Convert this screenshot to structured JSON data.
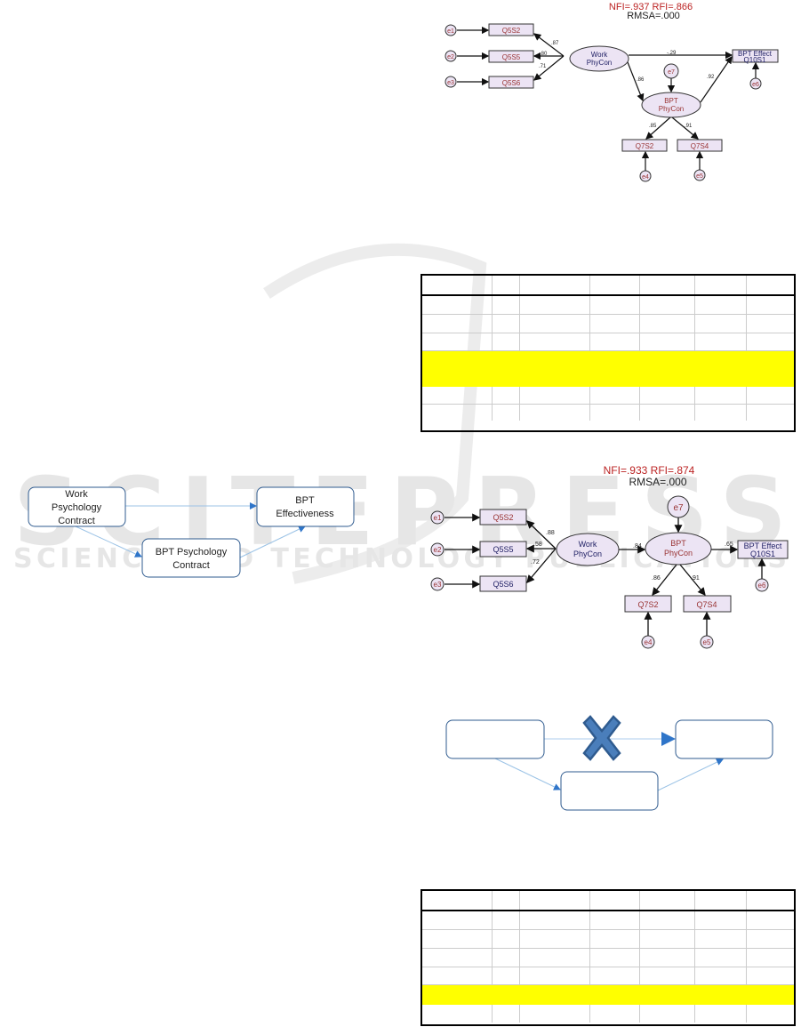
{
  "watermark": {
    "main": "SCITEPRESS",
    "sub": "SCIENCE AND TECHNOLOGY PUBLICATIONS"
  },
  "left_diagram": {
    "work": [
      "Work",
      "Psychology",
      "Contract"
    ],
    "effect": [
      "BPT",
      "Effectiveness"
    ],
    "mediator": [
      "BPT Psychology",
      "Contract"
    ]
  },
  "sem1": {
    "fit": "NFI=.937   RFI=.866",
    "rmsa": "RMSA=.000",
    "work": [
      "Work",
      "PhyCon"
    ],
    "bpt": [
      "BPT",
      "PhyCon"
    ],
    "effect": [
      "BPT Effect",
      "Q10S1"
    ],
    "items": [
      "Q5S2",
      "Q5S5",
      "Q5S6",
      "Q7S2",
      "Q7S4"
    ],
    "errors": [
      "e1",
      "e2",
      "e3",
      "e4",
      "e5",
      "e6",
      "e7"
    ],
    "loadings": [
      ".87",
      ".80",
      ".71",
      "-.29",
      ".86",
      ".92",
      ".85",
      ".91"
    ]
  },
  "sem2": {
    "fit": "NFI=.933   RFI=.874",
    "rmsa": "RMSA=.000",
    "work": [
      "Work",
      "PhyCon"
    ],
    "bpt": [
      "BPT",
      "PhyCon"
    ],
    "effect": [
      "BPT Effect",
      "Q10S1"
    ],
    "items": [
      "Q5S2",
      "Q5S5",
      "Q5S6",
      "Q7S2",
      "Q7S4"
    ],
    "errors": [
      "e1",
      "e2",
      "e3",
      "e4",
      "e5",
      "e6",
      "e7"
    ],
    "loadings": [
      ".88",
      ".58",
      ".72",
      ".84",
      ".65",
      ".86",
      ".91"
    ]
  },
  "colors": {
    "highlight": "#ffff00",
    "box_border": "#2f5b8f",
    "arrow": "#5b9bd5",
    "cross": "#4a7ebb"
  }
}
